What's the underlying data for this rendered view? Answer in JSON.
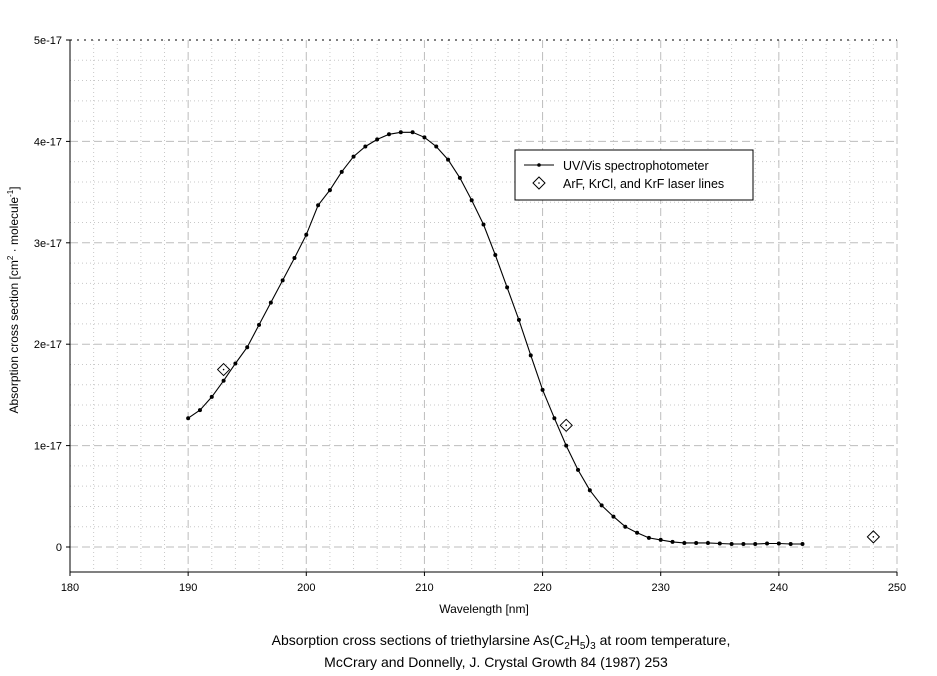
{
  "chart_data": {
    "type": "line",
    "xlabel": "Wavelength [nm]",
    "ylabel": "Absorption cross section [cm² · molecule⁻¹]",
    "ylabel_parts": {
      "a": "Absorption cross section [cm",
      "sup1": "2",
      "b": " · molecule",
      "sup2": "-1",
      "c": "]"
    },
    "caption": {
      "line1_a": "Absorption cross sections of triethylarsine As(C",
      "sub1": "2",
      "line1_b": "H",
      "sub2": "5",
      "line1_c": ")",
      "sub3": "3",
      "line1_d": " at room temperature,",
      "line2": "McCrary and Donnelly, J. Crystal Growth 84 (1987) 253"
    },
    "xlim": [
      180,
      250
    ],
    "ylim": [
      0,
      5e-17
    ],
    "x_ticks": [
      180,
      190,
      200,
      210,
      220,
      230,
      240,
      250
    ],
    "x_tick_labels": [
      "180",
      "190",
      "200",
      "210",
      "220",
      "230",
      "240",
      "250"
    ],
    "y_ticks": [
      0,
      1e-17,
      2e-17,
      3e-17,
      4e-17,
      5e-17
    ],
    "y_tick_labels": [
      "0",
      "1e-17",
      "2e-17",
      "3e-17",
      "4e-17",
      "5e-17"
    ],
    "grid": true,
    "legend_position": "top-right",
    "series": [
      {
        "name": "UV/Vis spectrophotometer",
        "style": "line-dot",
        "x": [
          190,
          191,
          192,
          193,
          194,
          195,
          196,
          197,
          198,
          199,
          200,
          201,
          202,
          203,
          204,
          205,
          206,
          207,
          208,
          209,
          210,
          211,
          212,
          213,
          214,
          215,
          216,
          217,
          218,
          219,
          220,
          221,
          222,
          223,
          224,
          225,
          226,
          227,
          228,
          229,
          230,
          231,
          232,
          233,
          234,
          235,
          236,
          237,
          238,
          239,
          240,
          241,
          242
        ],
        "y": [
          1.27e-17,
          1.35e-17,
          1.48e-17,
          1.64e-17,
          1.81e-17,
          1.97e-17,
          2.19e-17,
          2.41e-17,
          2.63e-17,
          2.85e-17,
          3.08e-17,
          3.37e-17,
          3.52e-17,
          3.7e-17,
          3.85e-17,
          3.95e-17,
          4.02e-17,
          4.07e-17,
          4.09e-17,
          4.09e-17,
          4.04e-17,
          3.95e-17,
          3.82e-17,
          3.64e-17,
          3.42e-17,
          3.18e-17,
          2.88e-17,
          2.56e-17,
          2.24e-17,
          1.89e-17,
          1.55e-17,
          1.27e-17,
          1e-17,
          7.6e-18,
          5.6e-18,
          4.1e-18,
          3e-18,
          2e-18,
          1.4e-18,
          9e-19,
          7e-19,
          5e-19,
          4e-19,
          4e-19,
          4e-19,
          3.5e-19,
          3e-19,
          3e-19,
          3e-19,
          3.5e-19,
          3.5e-19,
          3e-19,
          3e-19
        ]
      },
      {
        "name": "ArF, KrCl, and KrF laser lines",
        "style": "diamond",
        "x": [
          193,
          222,
          248
        ],
        "y": [
          1.75e-17,
          1.2e-17,
          1e-18
        ]
      }
    ]
  }
}
